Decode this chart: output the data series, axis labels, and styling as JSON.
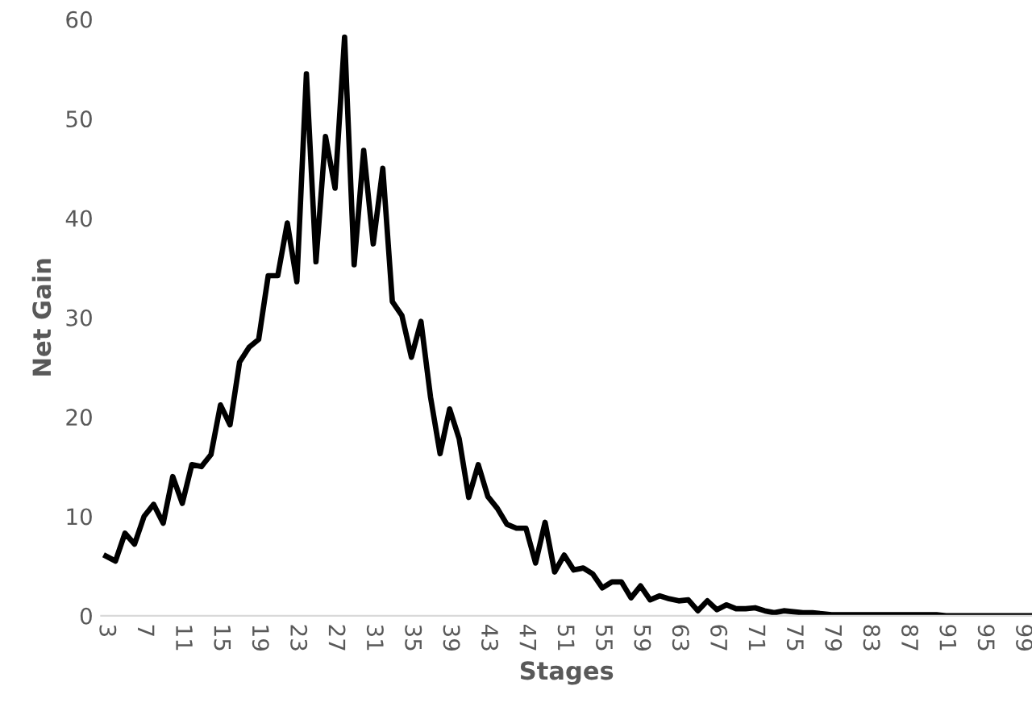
{
  "chart_data": {
    "type": "line",
    "xlabel": "Stages",
    "ylabel": "Net Gain",
    "categories": [
      "3",
      null,
      null,
      null,
      "7",
      null,
      null,
      null,
      "11",
      null,
      null,
      null,
      "15",
      null,
      null,
      null,
      "19",
      null,
      null,
      null,
      "23",
      null,
      null,
      null,
      "27",
      null,
      null,
      null,
      "31",
      null,
      null,
      null,
      "35",
      null,
      null,
      null,
      "39",
      null,
      null,
      null,
      "43",
      null,
      null,
      null,
      "47",
      null,
      null,
      null,
      "51",
      null,
      null,
      null,
      "55",
      null,
      null,
      null,
      "59",
      null,
      null,
      null,
      "63",
      null,
      null,
      null,
      "67",
      null,
      null,
      null,
      "71",
      null,
      null,
      null,
      "75",
      null,
      null,
      null,
      "79",
      null,
      null,
      null,
      "83",
      null,
      null,
      null,
      "87",
      null,
      null,
      null,
      "91",
      null,
      null,
      null,
      "95",
      null,
      null,
      null,
      "99",
      null
    ],
    "series": [
      {
        "color": "#000000",
        "values": [
          6.0,
          5.5,
          8.3,
          7.2,
          10,
          11.2,
          9.3,
          14,
          11.3,
          15.2,
          15,
          16.2,
          21.2,
          19.2,
          25.5,
          27,
          27.8,
          34.2,
          34.2,
          39.5,
          33.6,
          54.5,
          35.6,
          48.2,
          43,
          58.2,
          35.3,
          46.8,
          37.4,
          45,
          31.6,
          30.2,
          26,
          29.6,
          22,
          16.3,
          20.8,
          17.8,
          11.9,
          15.2,
          12,
          10.8,
          9.2,
          8.8,
          8.8,
          5.3,
          9.4,
          4.4,
          6.1,
          4.6,
          4.8,
          4.2,
          2.8,
          3.4,
          3.4,
          1.8,
          3.0,
          1.6,
          2.0,
          1.7,
          1.5,
          1.6,
          0.5,
          1.5,
          0.6,
          1.1,
          0.7,
          0.7,
          0.8,
          0.5,
          0.3,
          0.5,
          0.4,
          0.3,
          0.3,
          0.2,
          0.1,
          0.1,
          0.1,
          0.1,
          0.1,
          0.1,
          0.1,
          0.1,
          0.1,
          0.1,
          0.1,
          0.1,
          0,
          0,
          0,
          0,
          0,
          0,
          0,
          0,
          0,
          0
        ]
      }
    ],
    "ylim": [
      0,
      60
    ],
    "yticks": [
      0,
      10,
      20,
      30,
      40,
      50,
      60
    ],
    "grid": false,
    "legend": false,
    "marker": "none",
    "line_style": "solid"
  }
}
